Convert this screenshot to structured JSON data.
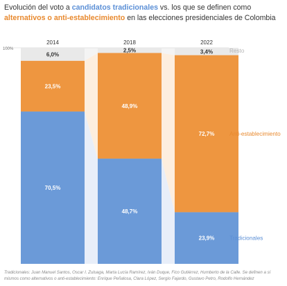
{
  "title": {
    "part1": "Evolución del voto a ",
    "highlight1": "candidatos tradicionales",
    "part2": " vs. los que se definen como ",
    "highlight2": "alternativos o anti-establecimiento",
    "part3": " en las elecciones presidenciales de Colombia"
  },
  "colors": {
    "tradicionales": "#6b9ad8",
    "anti": "#ee9640",
    "resto": "#e9e9e9",
    "flow_trad": "#e8eef9",
    "flow_anti": "#fdeede",
    "flow_resto": "#f4f4f4"
  },
  "chart_data": {
    "type": "bar",
    "stacked": true,
    "categories": [
      "2014",
      "2018",
      "2022"
    ],
    "ylim": [
      0,
      100
    ],
    "y_tick_label": "100%",
    "series": [
      {
        "name": "Tradicionales",
        "values": [
          70.5,
          48.7,
          23.9
        ],
        "labels": [
          "70,5%",
          "48,7%",
          "23,9%"
        ]
      },
      {
        "name": "Anti-establecimiento",
        "values": [
          23.5,
          48.9,
          72.7
        ],
        "labels": [
          "23,5%",
          "48,9%",
          "72,7%"
        ]
      },
      {
        "name": "Resto",
        "values": [
          6.0,
          2.5,
          3.4
        ],
        "labels": [
          "6,0%",
          "2,5%",
          "3,4%"
        ]
      }
    ]
  },
  "footnote": {
    "line1": "Tradicionales: Juan Manuel Santos, Óscar I. Zuluaga, Marta Lucía Ramírez, Iván Duque, Fico Gutiérrez, Humberto de la Calle. Se definen a sí",
    "line2": "mismos como alternativos o anti-establecimiento: Enrique Peñalosa, Clara López, Sergio Fajardo, Gustavo Petro, Rodolfo Hernández"
  }
}
